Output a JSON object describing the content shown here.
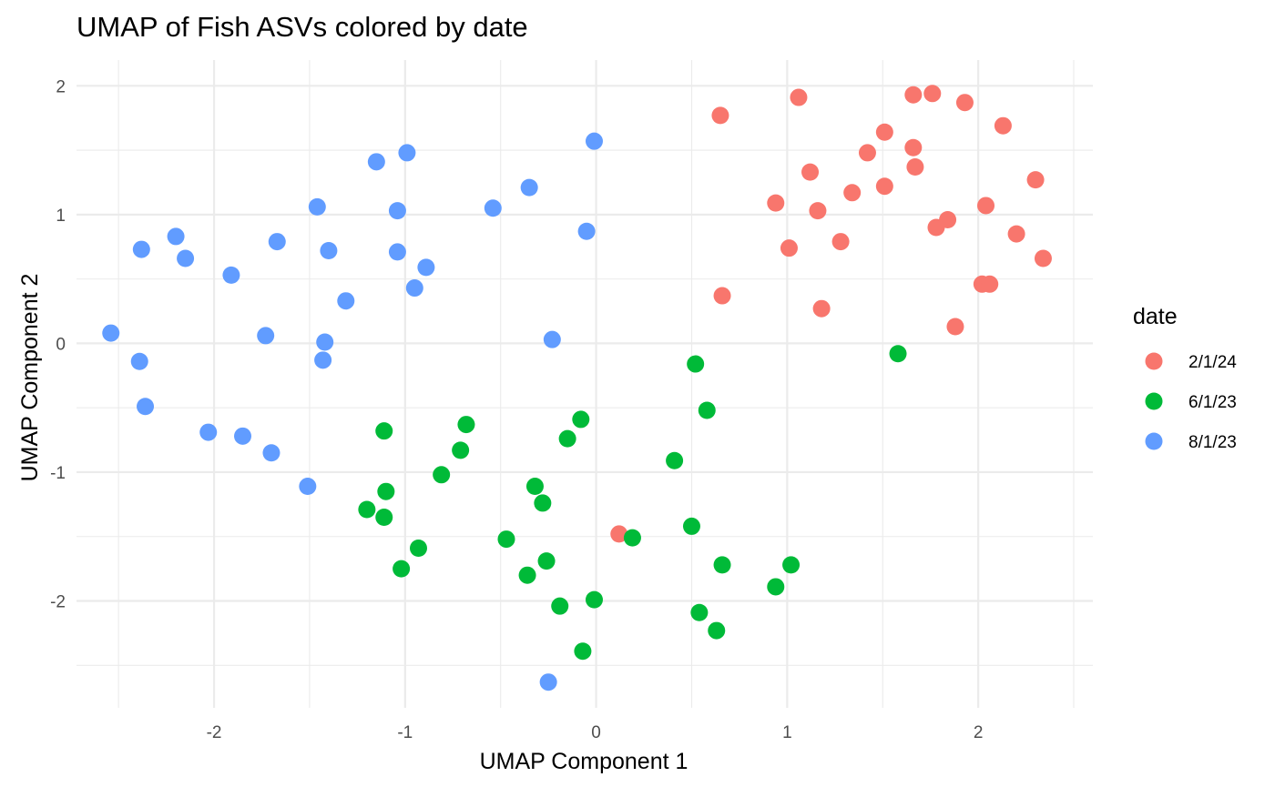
{
  "chart_data": {
    "type": "scatter",
    "title": "UMAP of Fish ASVs colored by date",
    "xlabel": "UMAP Component 1",
    "ylabel": "UMAP Component 2",
    "xlim": [
      -2.72,
      2.6
    ],
    "ylim": [
      -2.83,
      2.2
    ],
    "x_ticks": [
      -2,
      -1,
      0,
      1,
      2
    ],
    "x_tick_labels": [
      "-2",
      "-1",
      "0",
      "1",
      "2"
    ],
    "y_ticks": [
      -2,
      -1,
      0,
      1,
      2
    ],
    "y_tick_labels": [
      "-2",
      "-1",
      "0",
      "1",
      "2"
    ],
    "grid": true,
    "legend": {
      "title": "date",
      "position": "right"
    },
    "series": [
      {
        "name": "2/1/24",
        "color": "#F8766D",
        "points": [
          [
            0.65,
            1.77
          ],
          [
            1.06,
            1.91
          ],
          [
            1.66,
            1.93
          ],
          [
            1.76,
            1.94
          ],
          [
            1.93,
            1.87
          ],
          [
            1.51,
            1.64
          ],
          [
            2.13,
            1.69
          ],
          [
            1.42,
            1.48
          ],
          [
            1.66,
            1.52
          ],
          [
            1.12,
            1.33
          ],
          [
            1.67,
            1.37
          ],
          [
            1.34,
            1.17
          ],
          [
            1.51,
            1.22
          ],
          [
            2.3,
            1.27
          ],
          [
            0.94,
            1.09
          ],
          [
            1.16,
            1.03
          ],
          [
            2.04,
            1.07
          ],
          [
            1.84,
            0.96
          ],
          [
            1.78,
            0.9
          ],
          [
            2.2,
            0.85
          ],
          [
            1.01,
            0.74
          ],
          [
            1.28,
            0.79
          ],
          [
            2.34,
            0.66
          ],
          [
            2.02,
            0.46
          ],
          [
            2.06,
            0.46
          ],
          [
            0.66,
            0.37
          ],
          [
            1.18,
            0.27
          ],
          [
            1.88,
            0.13
          ],
          [
            0.12,
            -1.48
          ]
        ]
      },
      {
        "name": "6/1/23",
        "color": "#00BA38",
        "points": [
          [
            1.58,
            -0.08
          ],
          [
            0.52,
            -0.16
          ],
          [
            0.58,
            -0.52
          ],
          [
            -0.08,
            -0.59
          ],
          [
            -0.68,
            -0.63
          ],
          [
            -1.11,
            -0.68
          ],
          [
            -0.15,
            -0.74
          ],
          [
            -0.71,
            -0.83
          ],
          [
            0.41,
            -0.91
          ],
          [
            -0.81,
            -1.02
          ],
          [
            -0.32,
            -1.11
          ],
          [
            -1.1,
            -1.15
          ],
          [
            -0.28,
            -1.24
          ],
          [
            -1.2,
            -1.29
          ],
          [
            -1.11,
            -1.35
          ],
          [
            0.5,
            -1.42
          ],
          [
            -0.47,
            -1.52
          ],
          [
            0.19,
            -1.51
          ],
          [
            -0.93,
            -1.59
          ],
          [
            -0.26,
            -1.69
          ],
          [
            -1.02,
            -1.75
          ],
          [
            -0.36,
            -1.8
          ],
          [
            0.66,
            -1.72
          ],
          [
            1.02,
            -1.72
          ],
          [
            0.94,
            -1.89
          ],
          [
            -0.01,
            -1.99
          ],
          [
            -0.19,
            -2.04
          ],
          [
            0.54,
            -2.09
          ],
          [
            0.63,
            -2.23
          ],
          [
            -0.07,
            -2.39
          ]
        ]
      },
      {
        "name": "8/1/23",
        "color": "#619CFF",
        "points": [
          [
            -0.01,
            1.57
          ],
          [
            -0.99,
            1.48
          ],
          [
            -1.15,
            1.41
          ],
          [
            -0.35,
            1.21
          ],
          [
            -1.46,
            1.06
          ],
          [
            -0.54,
            1.05
          ],
          [
            -1.04,
            1.03
          ],
          [
            -0.05,
            0.87
          ],
          [
            -2.2,
            0.83
          ],
          [
            -1.67,
            0.79
          ],
          [
            -2.38,
            0.73
          ],
          [
            -1.4,
            0.72
          ],
          [
            -1.04,
            0.71
          ],
          [
            -2.15,
            0.66
          ],
          [
            -0.89,
            0.59
          ],
          [
            -1.91,
            0.53
          ],
          [
            -0.95,
            0.43
          ],
          [
            -1.31,
            0.33
          ],
          [
            -2.54,
            0.08
          ],
          [
            -1.73,
            0.06
          ],
          [
            -0.23,
            0.03
          ],
          [
            -1.42,
            0.01
          ],
          [
            -2.39,
            -0.14
          ],
          [
            -1.43,
            -0.13
          ],
          [
            -2.36,
            -0.49
          ],
          [
            -2.03,
            -0.69
          ],
          [
            -1.85,
            -0.72
          ],
          [
            -1.7,
            -0.85
          ],
          [
            -1.51,
            -1.11
          ],
          [
            -0.25,
            -2.63
          ]
        ]
      }
    ]
  }
}
